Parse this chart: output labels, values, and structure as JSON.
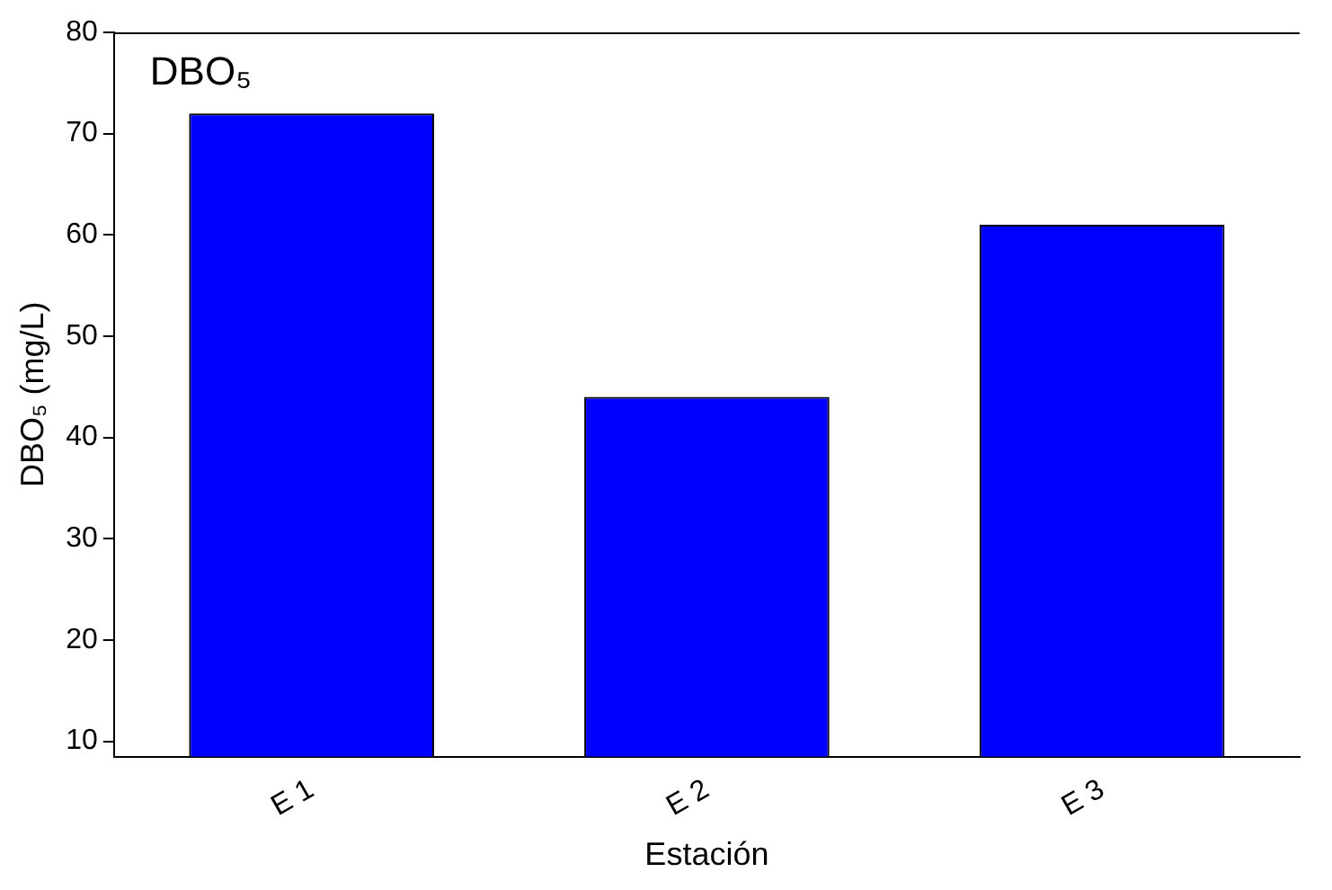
{
  "chart_data": {
    "type": "bar",
    "title": "DBO₅",
    "xlabel": "Estación",
    "ylabel": "DBO₅ (mg/L)",
    "categories": [
      "E 1",
      "E 2",
      "E 3"
    ],
    "values": [
      72,
      44,
      61
    ],
    "color": "#0000ff",
    "ylim": [
      8.5,
      80
    ],
    "yticks": [
      10,
      20,
      30,
      40,
      50,
      60,
      70,
      80
    ],
    "grid": false,
    "legend": false
  }
}
